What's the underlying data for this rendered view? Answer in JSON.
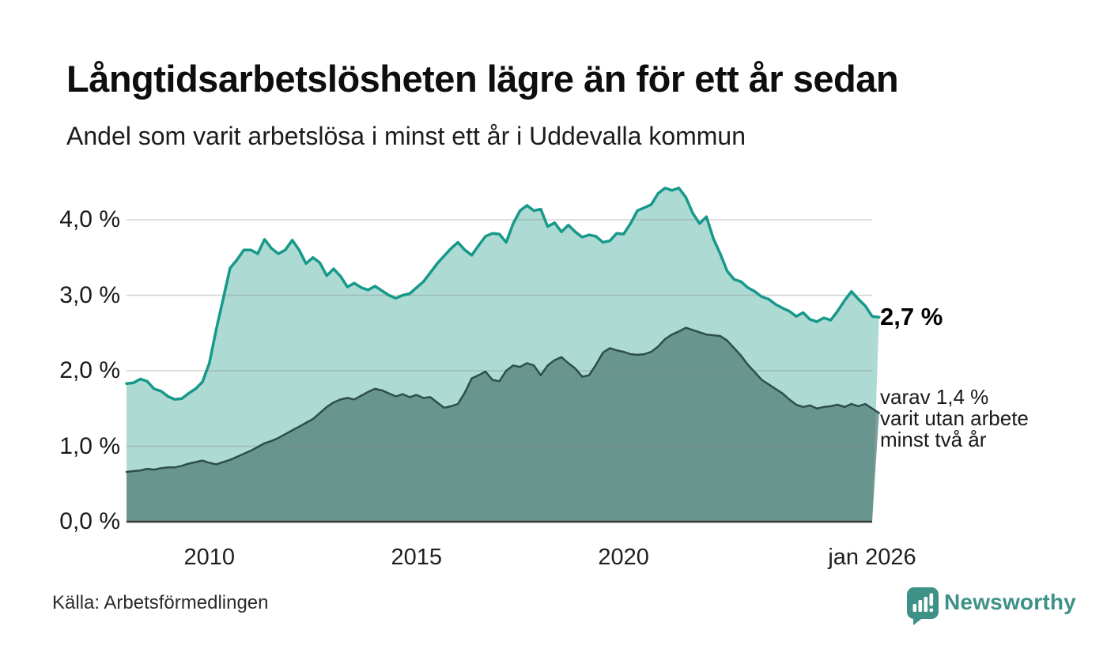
{
  "header": {
    "title": "Långtidsarbetslösheten lägre än för ett år sedan",
    "subtitle": "Andel som varit arbetslösa i minst ett år i Uddevalla kommun"
  },
  "chart_data": {
    "type": "area",
    "title": "Långtidsarbetslösheten lägre än för ett år sedan",
    "subtitle": "Andel som varit arbetslösa i minst ett år i Uddevalla kommun",
    "unit": "%",
    "xlim": [
      2008,
      2026
    ],
    "ylim": [
      0,
      4.6
    ],
    "x_step_years": 0.1666667,
    "grid": true,
    "grid_color": "rgba(125,130,129,0.35)",
    "axis_color": "#3a3a3a",
    "y_ticks": [
      {
        "value": 0,
        "label": "0,0 %"
      },
      {
        "value": 1,
        "label": "1,0 %"
      },
      {
        "value": 2,
        "label": "2,0 %"
      },
      {
        "value": 3,
        "label": "3,0 %"
      },
      {
        "value": 4,
        "label": "4,0 %"
      }
    ],
    "x_ticks": [
      {
        "value": 2010,
        "label": "2010"
      },
      {
        "value": 2015,
        "label": "2015"
      },
      {
        "value": 2020,
        "label": "2020"
      },
      {
        "value": 2026,
        "label": "jan 2026"
      }
    ],
    "series": [
      {
        "name": "Andel som varit arbetslösa i minst ett år",
        "end_value": 2.7,
        "color": "#16998a",
        "fill": "#8fccc3",
        "fill_opacity": 0.72,
        "stroke_width": 3.5,
        "values": [
          1.83,
          1.84,
          1.89,
          1.86,
          1.76,
          1.73,
          1.66,
          1.62,
          1.63,
          1.7,
          1.76,
          1.85,
          2.1,
          2.55,
          2.95,
          3.36,
          3.47,
          3.6,
          3.6,
          3.55,
          3.74,
          3.62,
          3.55,
          3.6,
          3.73,
          3.6,
          3.42,
          3.5,
          3.43,
          3.26,
          3.35,
          3.25,
          3.11,
          3.16,
          3.1,
          3.07,
          3.12,
          3.06,
          3.0,
          2.96,
          3.0,
          3.02,
          3.1,
          3.18,
          3.3,
          3.42,
          3.52,
          3.62,
          3.7,
          3.6,
          3.53,
          3.66,
          3.78,
          3.82,
          3.81,
          3.7,
          3.95,
          4.12,
          4.19,
          4.12,
          4.14,
          3.91,
          3.96,
          3.84,
          3.93,
          3.84,
          3.77,
          3.8,
          3.78,
          3.7,
          3.72,
          3.82,
          3.81,
          3.95,
          4.12,
          4.16,
          4.2,
          4.35,
          4.42,
          4.39,
          4.42,
          4.3,
          4.09,
          3.95,
          4.04,
          3.75,
          3.55,
          3.32,
          3.21,
          3.18,
          3.1,
          3.05,
          2.98,
          2.95,
          2.88,
          2.83,
          2.79,
          2.72,
          2.77,
          2.68,
          2.65,
          2.7,
          2.67,
          2.79,
          2.93,
          3.05,
          2.95,
          2.86,
          2.72,
          2.71
        ]
      },
      {
        "name": "varav utan arbete minst två år",
        "end_value": 1.4,
        "color": "#2d4f4a",
        "fill": "#4e7a73",
        "fill_opacity": 0.72,
        "stroke_width": 2.5,
        "values": [
          0.66,
          0.67,
          0.68,
          0.7,
          0.69,
          0.71,
          0.72,
          0.72,
          0.74,
          0.77,
          0.79,
          0.81,
          0.78,
          0.76,
          0.79,
          0.82,
          0.86,
          0.9,
          0.94,
          0.99,
          1.04,
          1.07,
          1.11,
          1.16,
          1.21,
          1.26,
          1.31,
          1.36,
          1.44,
          1.52,
          1.58,
          1.62,
          1.64,
          1.62,
          1.67,
          1.72,
          1.76,
          1.74,
          1.7,
          1.66,
          1.69,
          1.65,
          1.68,
          1.64,
          1.65,
          1.58,
          1.51,
          1.53,
          1.56,
          1.71,
          1.9,
          1.94,
          1.99,
          1.88,
          1.86,
          2.0,
          2.07,
          2.05,
          2.1,
          2.07,
          1.94,
          2.07,
          2.14,
          2.18,
          2.1,
          2.03,
          1.92,
          1.94,
          2.08,
          2.24,
          2.3,
          2.27,
          2.25,
          2.22,
          2.21,
          2.22,
          2.25,
          2.32,
          2.42,
          2.48,
          2.52,
          2.57,
          2.54,
          2.51,
          2.48,
          2.47,
          2.46,
          2.4,
          2.3,
          2.2,
          2.08,
          1.98,
          1.88,
          1.82,
          1.76,
          1.7,
          1.62,
          1.55,
          1.52,
          1.54,
          1.5,
          1.52,
          1.53,
          1.55,
          1.52,
          1.56,
          1.53,
          1.56,
          1.5,
          1.44
        ]
      }
    ],
    "annotations": {
      "end_value_label": "2,7 %",
      "sub_label_lines": [
        "varav 1,4 %",
        "varit utan arbete",
        "minst två år"
      ]
    },
    "legend": "direct-labels-right"
  },
  "footer": {
    "source": "Källa: Arbetsförmedlingen",
    "logo_text": "Newsworthy",
    "logo_color": "#3d9186"
  }
}
